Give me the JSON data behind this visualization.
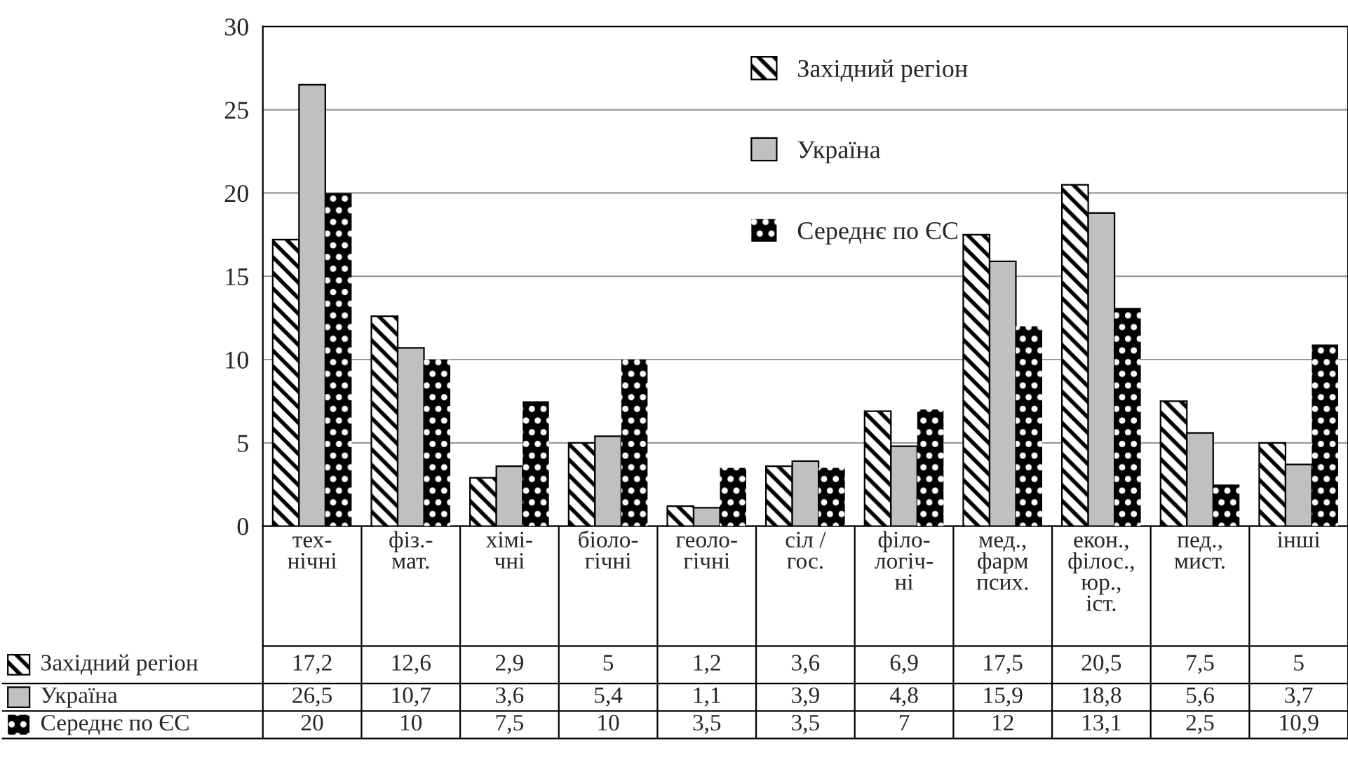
{
  "chart_data": {
    "type": "bar",
    "categories": [
      "тех-\nнічні",
      "фіз.-\nмат.",
      "хімі-\nчні",
      "біоло-\nгічні",
      "геоло-\nгічні",
      "сіл /\nгос.",
      "філо-\nлогіч-\nні",
      "мед.,\nфарм\nпсих.",
      "екон.,\nфілос.,\nюр.,\nіст.",
      "пед.,\nмист.",
      "інші"
    ],
    "series": [
      {
        "name": "Західний регіон",
        "color": "#000000",
        "values": [
          17.2,
          12.6,
          2.9,
          5,
          1.2,
          3.6,
          6.9,
          17.5,
          20.5,
          7.5,
          5
        ],
        "value_labels": [
          "17,2",
          "12,6",
          "2,9",
          "5",
          "1,2",
          "3,6",
          "6,9",
          "17,5",
          "20,5",
          "7,5",
          "5"
        ]
      },
      {
        "name": "Україна",
        "color": "#c0c0c0",
        "values": [
          26.5,
          10.7,
          3.6,
          5.4,
          1.1,
          3.9,
          4.8,
          15.9,
          18.8,
          5.6,
          3.7
        ],
        "value_labels": [
          "26,5",
          "10,7",
          "3,6",
          "5,4",
          "1,1",
          "3,9",
          "4,8",
          "15,9",
          "18,8",
          "5,6",
          "3,7"
        ]
      },
      {
        "name": "Середнє по ЄС",
        "color": "#000000",
        "values": [
          20,
          10,
          7.5,
          10,
          3.5,
          3.5,
          7,
          12,
          13.1,
          2.5,
          10.9
        ],
        "value_labels": [
          "20",
          "10",
          "7,5",
          "10",
          "3,5",
          "3,5",
          "7",
          "12",
          "13,1",
          "2,5",
          "10,9"
        ]
      }
    ],
    "ylim": [
      0,
      30
    ],
    "yticks": [
      0,
      5,
      10,
      15,
      20,
      25,
      30
    ],
    "grid": "y",
    "legend": "top"
  }
}
